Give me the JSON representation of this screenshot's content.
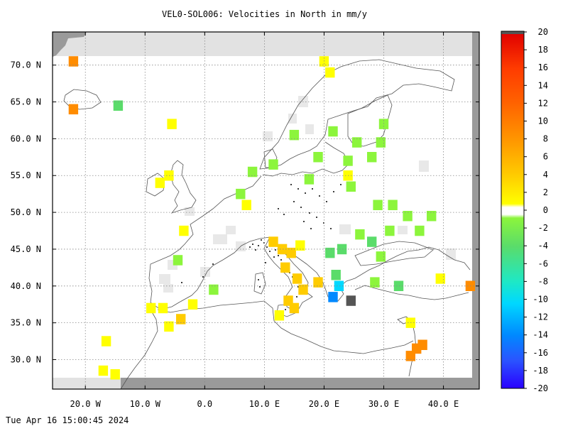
{
  "title": "VEL0-SOL006: Velocities in North in mm/y",
  "timestamp": "Tue Apr 16 15:00:45 2024",
  "chart_data": {
    "type": "heatmap",
    "projection": "equirectangular",
    "xlim": [
      -25.5,
      46
    ],
    "ylim": [
      26,
      74.5
    ],
    "grid": true,
    "x_ticks": [
      -20,
      -10,
      0,
      10,
      20,
      30,
      40
    ],
    "x_tick_labels": [
      "20.0 W",
      "10.0 W",
      "0.0",
      "10.0 E",
      "20.0 E",
      "30.0 E",
      "40.0 E"
    ],
    "y_ticks": [
      30,
      35,
      40,
      45,
      50,
      55,
      60,
      65,
      70
    ],
    "y_tick_labels": [
      "30.0 N",
      "35.0 N",
      "40.0 N",
      "45.0 N",
      "50.0 N",
      "55.0 N",
      "60.0 N",
      "65.0 N",
      "70.0 N"
    ],
    "colorbar": {
      "min": -20,
      "max": 20,
      "ticks": [
        20,
        18,
        16,
        14,
        12,
        10,
        8,
        6,
        4,
        2,
        0,
        -2,
        -4,
        -6,
        -8,
        -10,
        -12,
        -14,
        -16,
        -18,
        -20
      ],
      "colors": {
        "-20": "#2a00ff",
        "-16": "#2a55ff",
        "-12": "#0089ff",
        "-8": "#00d8ff",
        "-6": "#1ee8c6",
        "-4": "#5adc6a",
        "-2": "#8cf53c",
        "0": "#ffffff",
        "2": "#ffff00",
        "4": "#ffcc00",
        "6": "#ffaa00",
        "8": "#ff8c00",
        "10": "#ff6400",
        "14": "#ff3c00",
        "18": "#ff1400",
        "20": "#e00000"
      }
    },
    "cells": [
      {
        "lon": -22,
        "lat": 70.5,
        "value": 8
      },
      {
        "lon": -22,
        "lat": 64,
        "value": 8
      },
      {
        "lon": -14.5,
        "lat": 64.5,
        "value": -3
      },
      {
        "lon": -5.5,
        "lat": 62,
        "value": 3
      },
      {
        "lon": -7.5,
        "lat": 54,
        "value": 3
      },
      {
        "lon": -6,
        "lat": 55,
        "value": 3
      },
      {
        "lon": -3.5,
        "lat": 47.5,
        "value": 3
      },
      {
        "lon": -4.5,
        "lat": 43.5,
        "value": -2
      },
      {
        "lon": -2,
        "lat": 37.5,
        "value": 3
      },
      {
        "lon": -4,
        "lat": 35.5,
        "value": 5
      },
      {
        "lon": -7,
        "lat": 37,
        "value": 3
      },
      {
        "lon": -9,
        "lat": 37,
        "value": 3
      },
      {
        "lon": -6,
        "lat": 34.5,
        "value": 3
      },
      {
        "lon": -16.5,
        "lat": 32.5,
        "value": 3
      },
      {
        "lon": -17,
        "lat": 28.5,
        "value": 3
      },
      {
        "lon": -15,
        "lat": 28,
        "value": 3
      },
      {
        "lon": 1.5,
        "lat": 39.5,
        "value": -2
      },
      {
        "lon": 6,
        "lat": 52.5,
        "value": -2
      },
      {
        "lon": 7,
        "lat": 51,
        "value": 3
      },
      {
        "lon": 8,
        "lat": 55.5,
        "value": -2
      },
      {
        "lon": 11.5,
        "lat": 56.5,
        "value": -2
      },
      {
        "lon": 15,
        "lat": 60.5,
        "value": -2
      },
      {
        "lon": 19,
        "lat": 57.5,
        "value": -2
      },
      {
        "lon": 21.5,
        "lat": 61,
        "value": -2
      },
      {
        "lon": 25.5,
        "lat": 59.5,
        "value": -2
      },
      {
        "lon": 24,
        "lat": 57,
        "value": -2
      },
      {
        "lon": 28,
        "lat": 57.5,
        "value": -2
      },
      {
        "lon": 29.5,
        "lat": 59.5,
        "value": -2
      },
      {
        "lon": 30,
        "lat": 62,
        "value": -2
      },
      {
        "lon": 21,
        "lat": 69,
        "value": 3
      },
      {
        "lon": 20,
        "lat": 70.5,
        "value": 3
      },
      {
        "lon": 24,
        "lat": 55,
        "value": 3
      },
      {
        "lon": 24.5,
        "lat": 53.5,
        "value": -2
      },
      {
        "lon": 17.5,
        "lat": 54.5,
        "value": -2
      },
      {
        "lon": 29,
        "lat": 51,
        "value": -2
      },
      {
        "lon": 31.5,
        "lat": 51,
        "value": -2
      },
      {
        "lon": 34,
        "lat": 49.5,
        "value": -2
      },
      {
        "lon": 38,
        "lat": 49.5,
        "value": -2
      },
      {
        "lon": 36,
        "lat": 47.5,
        "value": -2
      },
      {
        "lon": 31,
        "lat": 47.5,
        "value": -2
      },
      {
        "lon": 28,
        "lat": 46,
        "value": -3
      },
      {
        "lon": 29.5,
        "lat": 44,
        "value": -2
      },
      {
        "lon": 26,
        "lat": 47,
        "value": -2
      },
      {
        "lon": 11.5,
        "lat": 46,
        "value": 5
      },
      {
        "lon": 13,
        "lat": 45,
        "value": 5
      },
      {
        "lon": 14.5,
        "lat": 44.5,
        "value": 5
      },
      {
        "lon": 16,
        "lat": 45.5,
        "value": 3
      },
      {
        "lon": 13.5,
        "lat": 42.5,
        "value": 4
      },
      {
        "lon": 15.5,
        "lat": 41,
        "value": 4
      },
      {
        "lon": 16.5,
        "lat": 39.5,
        "value": 4
      },
      {
        "lon": 14,
        "lat": 38,
        "value": 5
      },
      {
        "lon": 15,
        "lat": 37,
        "value": 5
      },
      {
        "lon": 12.5,
        "lat": 36,
        "value": 3
      },
      {
        "lon": 19,
        "lat": 40.5,
        "value": 4
      },
      {
        "lon": 21,
        "lat": 44.5,
        "value": -3
      },
      {
        "lon": 23,
        "lat": 45,
        "value": -4
      },
      {
        "lon": 22,
        "lat": 41.5,
        "value": -4
      },
      {
        "lon": 22.5,
        "lat": 40,
        "value": -8
      },
      {
        "lon": 21.5,
        "lat": 38.5,
        "value": -11
      },
      {
        "lon": 24.5,
        "lat": 38,
        "value": -20
      },
      {
        "lon": 28.5,
        "lat": 40.5,
        "value": -2
      },
      {
        "lon": 32.5,
        "lat": 40,
        "value": -4
      },
      {
        "lon": 39.5,
        "lat": 41,
        "value": 3
      },
      {
        "lon": 44.5,
        "lat": 40,
        "value": 8
      },
      {
        "lon": 34.5,
        "lat": 35,
        "value": 3
      },
      {
        "lon": 35.5,
        "lat": 31.5,
        "value": 8
      },
      {
        "lon": 36.5,
        "lat": 32,
        "value": 8
      },
      {
        "lon": 34.5,
        "lat": 30.5,
        "value": 8
      }
    ]
  }
}
